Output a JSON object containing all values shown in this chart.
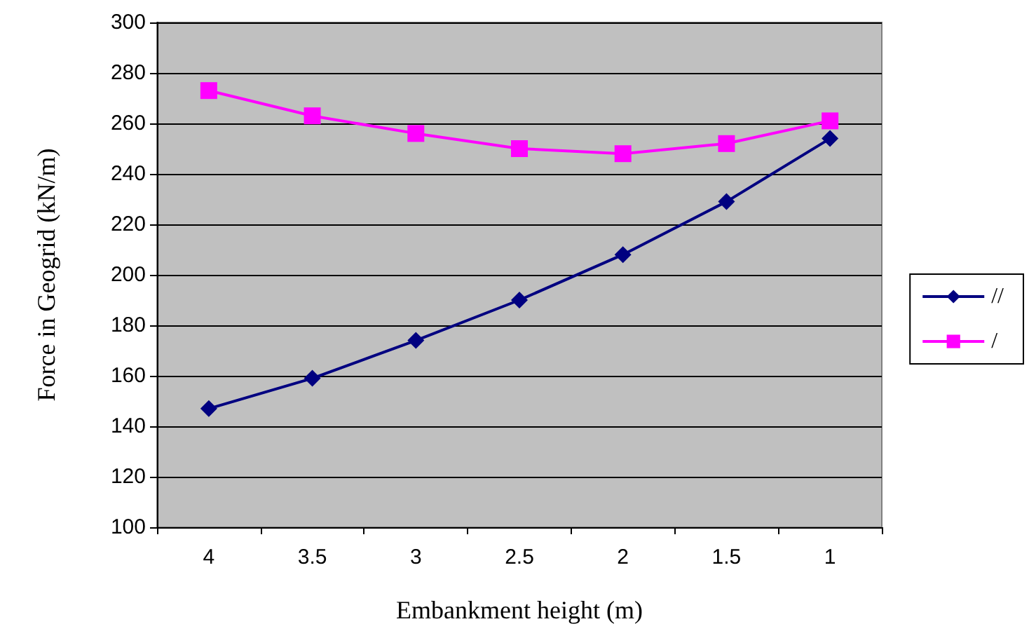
{
  "chart_data": {
    "type": "line",
    "xlabel": "Embankment height (m)",
    "ylabel": "Force in Geogrid (kN/m)",
    "categories": [
      "4",
      "3.5",
      "3",
      "2.5",
      "2",
      "1.5",
      "1"
    ],
    "series": [
      {
        "name": "//",
        "color": "#000080",
        "marker": "diamond",
        "values": [
          147,
          159,
          174,
          190,
          208,
          229,
          254
        ]
      },
      {
        "name": "/",
        "color": "#ff00ff",
        "marker": "square",
        "values": [
          273,
          263,
          256,
          250,
          248,
          252,
          261
        ]
      }
    ],
    "ylim": [
      100,
      300
    ],
    "yticks": [
      100,
      120,
      140,
      160,
      180,
      200,
      220,
      240,
      260,
      280,
      300
    ],
    "grid": "y",
    "legend": "right",
    "line_style": "solid"
  }
}
